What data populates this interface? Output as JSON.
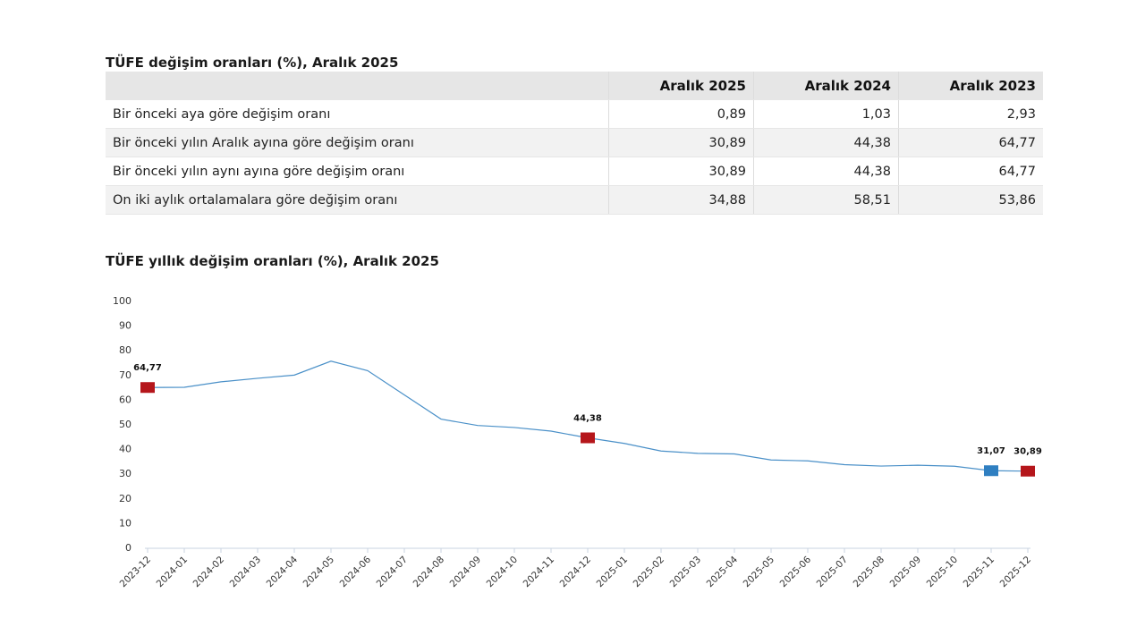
{
  "table": {
    "title": "TÜFE değişim oranları (%), Aralık 2025",
    "headers": [
      "",
      "Aralık 2025",
      "Aralık 2024",
      "Aralık 2023"
    ],
    "rows": [
      {
        "label": "Bir önceki aya göre değişim oranı",
        "values": [
          "0,89",
          "1,03",
          "2,93"
        ]
      },
      {
        "label": "Bir önceki yılın Aralık ayına göre değişim oranı",
        "values": [
          "30,89",
          "44,38",
          "64,77"
        ]
      },
      {
        "label": "Bir önceki yılın aynı ayına göre değişim oranı",
        "values": [
          "30,89",
          "44,38",
          "64,77"
        ]
      },
      {
        "label": "On iki aylık ortalamalara göre değişim oranı",
        "values": [
          "34,88",
          "58,51",
          "53,86"
        ]
      }
    ]
  },
  "chart_data": {
    "type": "line",
    "title": "TÜFE yıllık değişim oranları (%), Aralık 2025",
    "xlabel": "",
    "ylabel": "",
    "ylim": [
      0,
      100
    ],
    "yticks": [
      0,
      10,
      20,
      30,
      40,
      50,
      60,
      70,
      80,
      90,
      100
    ],
    "categories": [
      "2023-12",
      "2024-01",
      "2024-02",
      "2024-03",
      "2024-04",
      "2024-05",
      "2024-06",
      "2024-07",
      "2024-08",
      "2024-09",
      "2024-10",
      "2024-11",
      "2024-12",
      "2025-01",
      "2025-02",
      "2025-03",
      "2025-04",
      "2025-05",
      "2025-06",
      "2025-07",
      "2025-08",
      "2025-09",
      "2025-10",
      "2025-11",
      "2025-12"
    ],
    "series": [
      {
        "name": "TÜFE yıllık değişim",
        "color": "#4a90c8",
        "values": [
          64.77,
          64.86,
          67.07,
          68.5,
          69.8,
          75.45,
          71.6,
          61.78,
          51.97,
          49.38,
          48.58,
          47.09,
          44.38,
          42.12,
          39.05,
          38.1,
          37.86,
          35.41,
          35.05,
          33.52,
          32.95,
          33.29,
          32.87,
          31.07,
          30.89
        ]
      }
    ],
    "markers": [
      {
        "index": 0,
        "label": "64,77",
        "color": "#b5161b"
      },
      {
        "index": 12,
        "label": "44,38",
        "color": "#b5161b"
      },
      {
        "index": 23,
        "label": "31,07",
        "color": "#2f7fc1"
      },
      {
        "index": 24,
        "label": "30,89",
        "color": "#b5161b"
      }
    ]
  }
}
